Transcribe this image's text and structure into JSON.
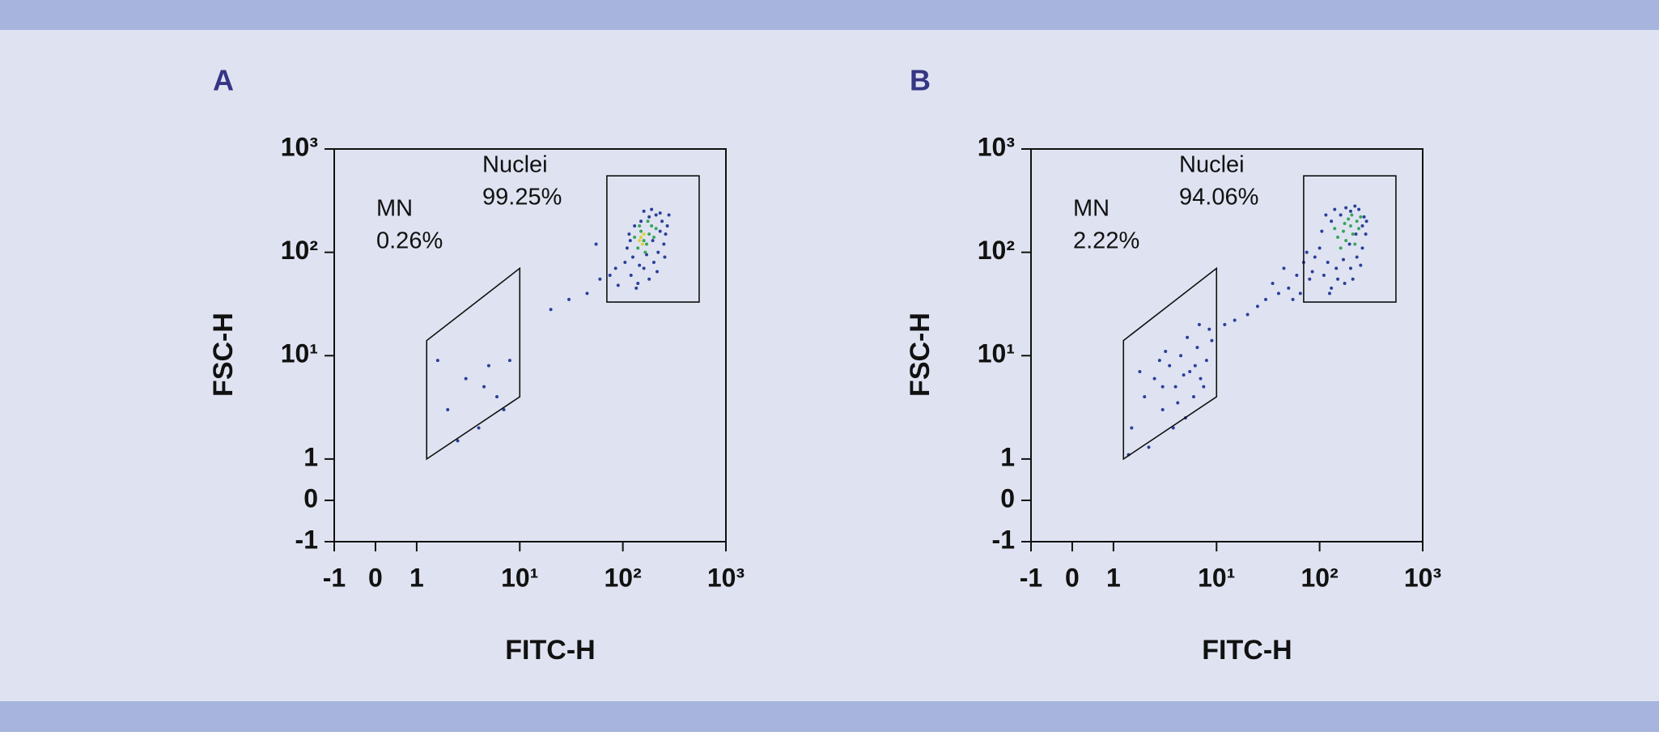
{
  "chart_data": [
    {
      "type": "scatter",
      "panel_label": "A",
      "xlabel": "FITC-H",
      "ylabel": "FSC-H",
      "xscale": "biexponential",
      "yscale": "biexponential",
      "xlim": [
        -1,
        1000
      ],
      "ylim": [
        -1,
        1000
      ],
      "xticks": [
        -1,
        0,
        1,
        {
          "value": 10,
          "label": "10¹"
        },
        {
          "value": 100,
          "label": "10²"
        },
        {
          "value": 1000,
          "label": "10³"
        }
      ],
      "yticks": [
        -1,
        0,
        1,
        {
          "value": 10,
          "label": "10¹"
        },
        {
          "value": 100,
          "label": "10²"
        },
        {
          "value": 1000,
          "label": "10³"
        }
      ],
      "series": [
        {
          "color": "#2b3f9a",
          "x": [
            120,
            140,
            160,
            180,
            200,
            220,
            250,
            260,
            240,
            210,
            180,
            150,
            130,
            115,
            110,
            125,
            145,
            170,
            195,
            230,
            270,
            255,
            215,
            135,
            160,
            190,
            280,
            118,
            105,
            230,
            60,
            45,
            30,
            75,
            20,
            85,
            55,
            90,
            2,
            3,
            4,
            5,
            6,
            1.6,
            7,
            2.5,
            4.5,
            8
          ],
          "y": [
            60,
            50,
            70,
            55,
            80,
            100,
            120,
            150,
            200,
            230,
            220,
            200,
            180,
            150,
            110,
            90,
            75,
            95,
            130,
            160,
            180,
            90,
            65,
            45,
            250,
            260,
            230,
            130,
            80,
            240,
            55,
            40,
            35,
            60,
            28,
            70,
            120,
            48,
            3,
            6,
            2,
            8,
            4,
            9,
            3,
            1.5,
            5,
            9
          ]
        },
        {
          "color": "#3aa55c",
          "x": [
            140,
            160,
            180,
            150,
            170,
            200,
            130,
            190,
            165,
            210,
            145,
            175
          ],
          "y": [
            110,
            130,
            150,
            160,
            120,
            140,
            140,
            180,
            100,
            170,
            180,
            200
          ]
        },
        {
          "color": "#d8d23a",
          "x": [
            150,
            160,
            155,
            145
          ],
          "y": [
            140,
            150,
            120,
            130
          ]
        }
      ],
      "gates": [
        {
          "name": "MN",
          "value": 0.26,
          "value_label": "0.26%",
          "x": [
            1.25,
            1.25,
            10,
            10
          ],
          "y": [
            1,
            14,
            70,
            4
          ]
        },
        {
          "name": "Nuclei",
          "value": 99.25,
          "value_label": "99.25%",
          "x": [
            70,
            550,
            550,
            70
          ],
          "y": [
            33,
            33,
            550,
            550
          ]
        }
      ]
    },
    {
      "type": "scatter",
      "panel_label": "B",
      "xlabel": "FITC-H",
      "ylabel": "FSC-H",
      "xscale": "biexponential",
      "yscale": "biexponential",
      "xlim": [
        -1,
        1000
      ],
      "ylim": [
        -1,
        1000
      ],
      "xticks": [
        -1,
        0,
        1,
        {
          "value": 10,
          "label": "10¹"
        },
        {
          "value": 100,
          "label": "10²"
        },
        {
          "value": 1000,
          "label": "10³"
        }
      ],
      "yticks": [
        -1,
        0,
        1,
        {
          "value": 10,
          "label": "10¹"
        },
        {
          "value": 100,
          "label": "10²"
        },
        {
          "value": 1000,
          "label": "10³"
        }
      ],
      "series": [
        {
          "color": "#2b3f9a",
          "x": [
            110,
            130,
            150,
            175,
            200,
            230,
            260,
            280,
            270,
            240,
            200,
            160,
            130,
            105,
            100,
            120,
            145,
            170,
            195,
            225,
            285,
            250,
            210,
            125,
            180,
            220,
            115,
            90,
            140,
            260,
            60,
            50,
            40,
            70,
            30,
            80,
            25,
            35,
            45,
            65,
            20,
            55,
            15,
            75,
            85,
            12,
            1.5,
            2,
            2.5,
            3,
            3.5,
            4,
            4.5,
            5,
            5.5,
            6,
            6.5,
            7,
            8,
            1.8,
            2.2,
            3.2,
            4.2,
            5.2,
            6.2,
            7.5,
            9,
            2.8,
            3.8,
            4.8,
            1.4,
            6.8,
            8.5,
            3
          ],
          "y": [
            60,
            45,
            55,
            50,
            70,
            90,
            110,
            150,
            220,
            260,
            250,
            230,
            200,
            160,
            110,
            80,
            70,
            85,
            120,
            150,
            200,
            75,
            55,
            40,
            270,
            280,
            230,
            90,
            260,
            180,
            60,
            45,
            40,
            80,
            35,
            55,
            30,
            50,
            70,
            40,
            25,
            35,
            22,
            100,
            65,
            20,
            2,
            4,
            6,
            3,
            8,
            5,
            10,
            2.5,
            7,
            4,
            12,
            6,
            9,
            7,
            1.3,
            11,
            3.5,
            15,
            8,
            5,
            14,
            9,
            2,
            6.5,
            1.1,
            20,
            18,
            5
          ]
        },
        {
          "color": "#3aa55c",
          "x": [
            150,
            170,
            200,
            230,
            180,
            210,
            140,
            250,
            190,
            160,
            220,
            240,
            175,
            205
          ],
          "y": [
            140,
            160,
            180,
            200,
            130,
            150,
            170,
            220,
            210,
            110,
            120,
            170,
            190,
            230
          ]
        }
      ],
      "gates": [
        {
          "name": "MN",
          "value": 2.22,
          "value_label": "2.22%",
          "x": [
            1.25,
            1.25,
            10,
            10
          ],
          "y": [
            1,
            14,
            70,
            4
          ]
        },
        {
          "name": "Nuclei",
          "value": 94.06,
          "value_label": "94.06%",
          "x": [
            70,
            550,
            550,
            70
          ],
          "y": [
            33,
            33,
            550,
            550
          ]
        }
      ]
    }
  ]
}
